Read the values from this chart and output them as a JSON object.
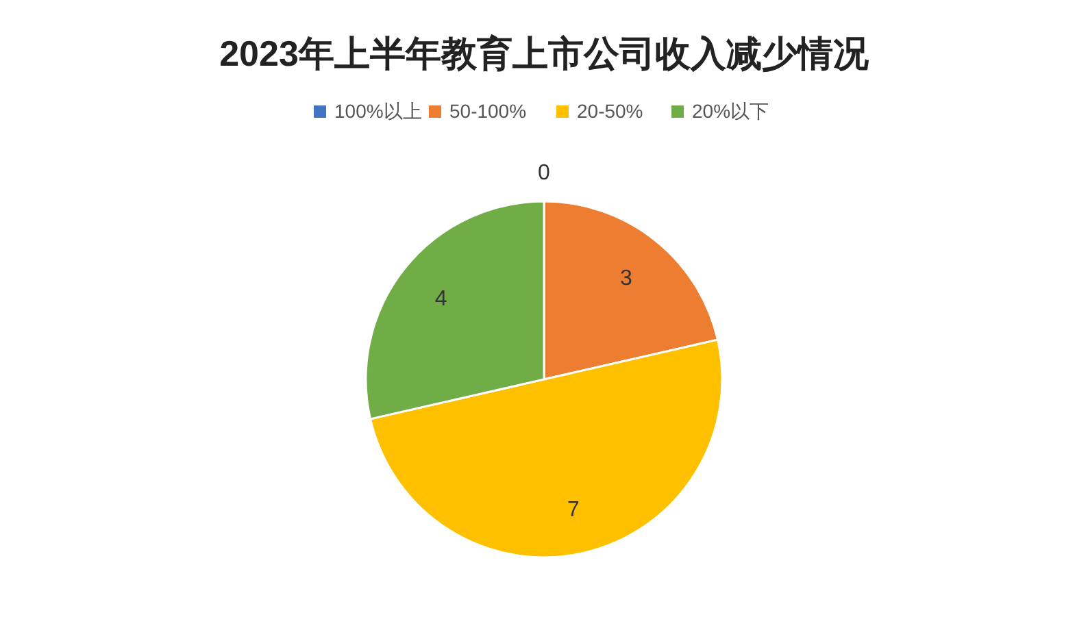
{
  "chart_data": {
    "type": "pie",
    "title": "2023年上半年教育上市公司收入减少情况",
    "categories": [
      "100%以上",
      "50-100%",
      "20-50%",
      "20%以下"
    ],
    "values": [
      0,
      3,
      7,
      4
    ],
    "colors": [
      "#4472c4",
      "#ed7d31",
      "#ffc000",
      "#70ad47"
    ],
    "value_labels": [
      "0",
      "3",
      "7",
      "4"
    ],
    "legend": "top"
  }
}
